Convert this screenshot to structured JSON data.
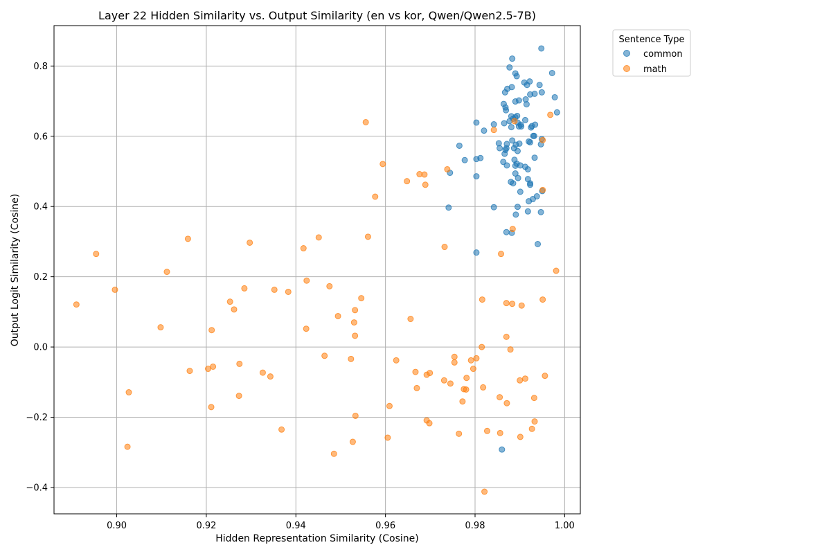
{
  "chart_data": {
    "type": "scatter",
    "title": "Layer 22 Hidden Similarity vs. Output Similarity (en vs kor, Qwen/Qwen2.5-7B)",
    "xlabel": "Hidden Representation Similarity (Cosine)",
    "ylabel": "Output Logit Similarity (Cosine)",
    "xlim": [
      0.886,
      1.0035
    ],
    "ylim": [
      -0.475,
      0.915
    ],
    "xticks": [
      0.9,
      0.92,
      0.94,
      0.96,
      0.98,
      1.0
    ],
    "xtick_labels": [
      "0.90",
      "0.92",
      "0.94",
      "0.96",
      "0.98",
      "1.00"
    ],
    "yticks": [
      -0.4,
      -0.2,
      0.0,
      0.2,
      0.4,
      0.6,
      0.8
    ],
    "ytick_labels": [
      "−0.4",
      "−0.2",
      "0.0",
      "0.2",
      "0.4",
      "0.6",
      "0.8"
    ],
    "grid": true,
    "legend": {
      "title": "Sentence Type",
      "placement": "outside-upper-right"
    },
    "series": [
      {
        "name": "common",
        "color": "#1f77b4",
        "points": [
          [
            0.9948,
            0.85
          ],
          [
            0.9883,
            0.821
          ],
          [
            0.9877,
            0.796
          ],
          [
            0.9972,
            0.78
          ],
          [
            0.989,
            0.779
          ],
          [
            0.9893,
            0.771
          ],
          [
            0.991,
            0.753
          ],
          [
            0.9922,
            0.756
          ],
          [
            0.9916,
            0.746
          ],
          [
            0.9944,
            0.746
          ],
          [
            0.9882,
            0.74
          ],
          [
            0.9872,
            0.735
          ],
          [
            0.9867,
            0.725
          ],
          [
            0.9949,
            0.725
          ],
          [
            0.9933,
            0.721
          ],
          [
            0.9923,
            0.719
          ],
          [
            0.9978,
            0.711
          ],
          [
            0.9913,
            0.705
          ],
          [
            0.9898,
            0.702
          ],
          [
            0.989,
            0.699
          ],
          [
            0.9864,
            0.692
          ],
          [
            0.9915,
            0.691
          ],
          [
            0.9868,
            0.682
          ],
          [
            0.9869,
            0.674
          ],
          [
            0.9983,
            0.668
          ],
          [
            0.9894,
            0.658
          ],
          [
            0.9881,
            0.657
          ],
          [
            0.989,
            0.654
          ],
          [
            0.9885,
            0.65
          ],
          [
            0.9912,
            0.646
          ],
          [
            0.9877,
            0.643
          ],
          [
            0.9895,
            0.639
          ],
          [
            0.9865,
            0.637
          ],
          [
            0.9902,
            0.633
          ],
          [
            0.9927,
            0.629
          ],
          [
            0.9934,
            0.633
          ],
          [
            0.9898,
            0.628
          ],
          [
            0.9881,
            0.626
          ],
          [
            0.9925,
            0.625
          ],
          [
            0.9803,
            0.639
          ],
          [
            0.9842,
            0.634
          ],
          [
            0.982,
            0.616
          ],
          [
            0.9903,
            0.628
          ],
          [
            0.9932,
            0.601
          ],
          [
            0.993,
            0.601
          ],
          [
            0.9949,
            0.592
          ],
          [
            0.9883,
            0.588
          ],
          [
            0.992,
            0.585
          ],
          [
            0.9923,
            0.583
          ],
          [
            0.9853,
            0.58
          ],
          [
            0.9899,
            0.579
          ],
          [
            0.9871,
            0.578
          ],
          [
            0.9891,
            0.576
          ],
          [
            0.9947,
            0.577
          ],
          [
            0.9765,
            0.573
          ],
          [
            0.9855,
            0.566
          ],
          [
            0.987,
            0.566
          ],
          [
            0.9868,
            0.561
          ],
          [
            0.9887,
            0.566
          ],
          [
            0.9895,
            0.558
          ],
          [
            0.9866,
            0.55
          ],
          [
            0.9933,
            0.539
          ],
          [
            0.9812,
            0.538
          ],
          [
            0.9803,
            0.535
          ],
          [
            0.9888,
            0.533
          ],
          [
            0.9777,
            0.532
          ],
          [
            0.9863,
            0.527
          ],
          [
            0.9893,
            0.522
          ],
          [
            0.9871,
            0.517
          ],
          [
            0.989,
            0.516
          ],
          [
            0.9901,
            0.517
          ],
          [
            0.9912,
            0.513
          ],
          [
            0.9918,
            0.506
          ],
          [
            0.9744,
            0.496
          ],
          [
            0.989,
            0.494
          ],
          [
            0.9803,
            0.486
          ],
          [
            0.9896,
            0.481
          ],
          [
            0.9918,
            0.478
          ],
          [
            0.988,
            0.47
          ],
          [
            0.9885,
            0.466
          ],
          [
            0.9923,
            0.466
          ],
          [
            0.9923,
            0.462
          ],
          [
            0.995,
            0.444
          ],
          [
            0.9901,
            0.442
          ],
          [
            0.9938,
            0.429
          ],
          [
            0.9929,
            0.421
          ],
          [
            0.992,
            0.415
          ],
          [
            0.9895,
            0.399
          ],
          [
            0.9741,
            0.397
          ],
          [
            0.9842,
            0.398
          ],
          [
            0.9918,
            0.386
          ],
          [
            0.9947,
            0.384
          ],
          [
            0.9891,
            0.377
          ],
          [
            0.987,
            0.327
          ],
          [
            0.9882,
            0.325
          ],
          [
            0.994,
            0.293
          ],
          [
            0.9803,
            0.269
          ],
          [
            0.986,
            -0.292
          ]
        ]
      },
      {
        "name": "math",
        "color": "#ff7f0e",
        "points": [
          [
            0.9556,
            0.64
          ],
          [
            0.9968,
            0.661
          ],
          [
            0.9888,
            0.643
          ],
          [
            0.9842,
            0.618
          ],
          [
            0.9951,
            0.589
          ],
          [
            0.9594,
            0.521
          ],
          [
            0.9738,
            0.506
          ],
          [
            0.9676,
            0.492
          ],
          [
            0.9687,
            0.491
          ],
          [
            0.9648,
            0.472
          ],
          [
            0.9689,
            0.462
          ],
          [
            0.9577,
            0.428
          ],
          [
            0.9951,
            0.447
          ],
          [
            0.9884,
            0.336
          ],
          [
            0.9159,
            0.308
          ],
          [
            0.9561,
            0.314
          ],
          [
            0.9451,
            0.312
          ],
          [
            0.9297,
            0.297
          ],
          [
            0.9417,
            0.281
          ],
          [
            0.9732,
            0.285
          ],
          [
            0.9858,
            0.265
          ],
          [
            0.8954,
            0.265
          ],
          [
            0.9981,
            0.217
          ],
          [
            0.9112,
            0.214
          ],
          [
            0.9424,
            0.189
          ],
          [
            0.9475,
            0.173
          ],
          [
            0.9285,
            0.167
          ],
          [
            0.9352,
            0.163
          ],
          [
            0.9383,
            0.157
          ],
          [
            0.8996,
            0.163
          ],
          [
            0.9546,
            0.139
          ],
          [
            0.9816,
            0.135
          ],
          [
            0.9951,
            0.135
          ],
          [
            0.9253,
            0.129
          ],
          [
            0.987,
            0.125
          ],
          [
            0.9883,
            0.123
          ],
          [
            0.9904,
            0.118
          ],
          [
            0.891,
            0.121
          ],
          [
            0.9262,
            0.107
          ],
          [
            0.9532,
            0.105
          ],
          [
            0.9494,
            0.088
          ],
          [
            0.9656,
            0.08
          ],
          [
            0.953,
            0.07
          ],
          [
            0.9098,
            0.056
          ],
          [
            0.9423,
            0.052
          ],
          [
            0.9212,
            0.048
          ],
          [
            0.9532,
            0.032
          ],
          [
            0.987,
            0.029
          ],
          [
            0.9815,
            0.0
          ],
          [
            0.9879,
            -0.007
          ],
          [
            0.9464,
            -0.025
          ],
          [
            0.9754,
            -0.028
          ],
          [
            0.9803,
            -0.032
          ],
          [
            0.9523,
            -0.034
          ],
          [
            0.9624,
            -0.038
          ],
          [
            0.9791,
            -0.038
          ],
          [
            0.9754,
            -0.044
          ],
          [
            0.9274,
            -0.048
          ],
          [
            0.9215,
            -0.056
          ],
          [
            0.9204,
            -0.062
          ],
          [
            0.9796,
            -0.062
          ],
          [
            0.9163,
            -0.068
          ],
          [
            0.9667,
            -0.071
          ],
          [
            0.9326,
            -0.073
          ],
          [
            0.9699,
            -0.074
          ],
          [
            0.9692,
            -0.079
          ],
          [
            0.9956,
            -0.082
          ],
          [
            0.9343,
            -0.084
          ],
          [
            0.9781,
            -0.088
          ],
          [
            0.9912,
            -0.09
          ],
          [
            0.9731,
            -0.095
          ],
          [
            0.99,
            -0.095
          ],
          [
            0.9745,
            -0.104
          ],
          [
            0.967,
            -0.117
          ],
          [
            0.9818,
            -0.115
          ],
          [
            0.9775,
            -0.12
          ],
          [
            0.978,
            -0.121
          ],
          [
            0.9027,
            -0.129
          ],
          [
            0.9273,
            -0.139
          ],
          [
            0.9855,
            -0.143
          ],
          [
            0.9932,
            -0.145
          ],
          [
            0.9772,
            -0.155
          ],
          [
            0.9871,
            -0.16
          ],
          [
            0.9609,
            -0.168
          ],
          [
            0.9211,
            -0.171
          ],
          [
            0.9533,
            -0.196
          ],
          [
            0.9692,
            -0.209
          ],
          [
            0.9933,
            -0.212
          ],
          [
            0.9698,
            -0.217
          ],
          [
            0.9368,
            -0.235
          ],
          [
            0.9927,
            -0.233
          ],
          [
            0.9827,
            -0.239
          ],
          [
            0.9856,
            -0.245
          ],
          [
            0.9764,
            -0.247
          ],
          [
            0.9901,
            -0.256
          ],
          [
            0.9605,
            -0.258
          ],
          [
            0.9527,
            -0.27
          ],
          [
            0.9024,
            -0.284
          ],
          [
            0.9485,
            -0.304
          ],
          [
            0.9821,
            -0.412
          ]
        ]
      }
    ]
  }
}
